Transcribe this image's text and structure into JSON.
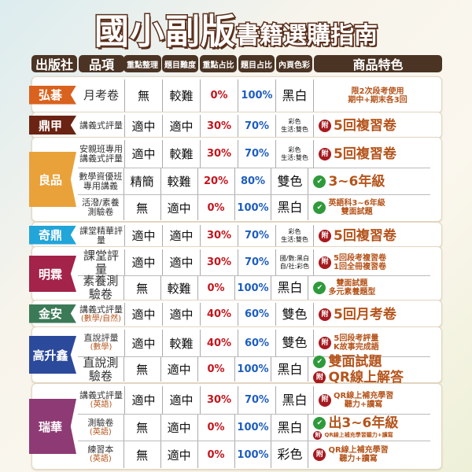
{
  "title": {
    "main": "國小副版",
    "sub": "書籍選購指南"
  },
  "colors": {
    "header": "#4b3424",
    "percent_key": "#c3151c",
    "percent_question": "#1e5dbf",
    "feature_text": "#b5541b"
  },
  "headers": [
    "出版社",
    "品項",
    "重點整理",
    "題目難度",
    "重點占比",
    "題目占比",
    "內頁色彩",
    "商品特色"
  ],
  "groups": [
    {
      "publisher": "弘碁",
      "color": "#d9621e",
      "rows": [
        {
          "item": [
            "月考卷"
          ],
          "sub": "",
          "summary": "無",
          "difficulty": "較難",
          "key_pct": "0%",
          "q_pct": "100%",
          "color_pages": [
            "黑白"
          ],
          "features": [
            {
              "icon": null,
              "lines": [
                "限2次段考使用",
                "期中+期末各3回"
              ]
            }
          ]
        }
      ]
    },
    {
      "publisher": "鼎甲",
      "color": "#6b2413",
      "rows": [
        {
          "item": [
            "講義式評量"
          ],
          "sub": "",
          "summary": "適中",
          "difficulty": "適中",
          "key_pct": "30%",
          "q_pct": "70%",
          "color_pages": [
            "彩色",
            "生活:雙色"
          ],
          "features": [
            {
              "icon": "attach-icon",
              "lines": [
                "5回複習卷"
              ]
            }
          ]
        }
      ]
    },
    {
      "publisher": "良品",
      "color": "#e9a23a",
      "rows": [
        {
          "item": [
            "安親班專用",
            "講義式評量"
          ],
          "sub": "",
          "summary": "適中",
          "difficulty": "較難",
          "key_pct": "30%",
          "q_pct": "70%",
          "color_pages": [
            "彩色",
            "生活:雙色"
          ],
          "features": [
            {
              "icon": "attach-icon",
              "lines": [
                "5回複習卷"
              ]
            }
          ]
        },
        {
          "item": [
            "數學資優班",
            "專用講義"
          ],
          "sub": "",
          "summary": "精簡",
          "difficulty": "較難",
          "key_pct": "20%",
          "q_pct": "80%",
          "color_pages": [
            "雙色"
          ],
          "features": [
            {
              "icon": "check-icon",
              "lines": [
                "3~6年級"
              ]
            }
          ]
        },
        {
          "item": [
            "活潑/素養",
            "測驗卷"
          ],
          "sub": "",
          "summary": "無",
          "difficulty": "適中",
          "key_pct": "0%",
          "q_pct": "100%",
          "color_pages": [
            "黑白"
          ],
          "features": [
            {
              "icon": "check-icon",
              "lines": [
                "英語科3~6年級",
                "雙面試題"
              ]
            }
          ]
        }
      ]
    },
    {
      "publisher": "奇鼎",
      "color": "#22a5d8",
      "rows": [
        {
          "item": [
            "課堂精華評量"
          ],
          "sub": "",
          "summary": "適中",
          "difficulty": "適中",
          "key_pct": "30%",
          "q_pct": "70%",
          "color_pages": [
            "彩色",
            "生活:雙色"
          ],
          "features": [
            {
              "icon": "attach-icon",
              "lines": [
                "5回複習卷"
              ]
            }
          ]
        }
      ]
    },
    {
      "publisher": "明霖",
      "color": "#a3234a",
      "rows": [
        {
          "item": [
            "課堂評量"
          ],
          "sub": "",
          "summary": "適中",
          "difficulty": "適中",
          "key_pct": "30%",
          "q_pct": "70%",
          "color_pages": [
            "國/數:黑白",
            "自/社:彩色"
          ],
          "features": [
            {
              "icon": "attach-icon",
              "lines": [
                "5回段考複習卷",
                "1回全冊複習卷"
              ]
            }
          ]
        },
        {
          "item": [
            "素養測驗卷"
          ],
          "sub": "",
          "summary": "無",
          "difficulty": "較難",
          "key_pct": "0%",
          "q_pct": "100%",
          "color_pages": [
            "黑白"
          ],
          "features": [
            {
              "icon": "check-icon",
              "lines": [
                "雙面試題",
                "多元素養題型"
              ]
            }
          ]
        }
      ]
    },
    {
      "publisher": "金安",
      "color": "#3b7a57",
      "rows": [
        {
          "item": [
            "講義式評量"
          ],
          "sub": "(數學/自然)",
          "summary": "適中",
          "difficulty": "適中",
          "key_pct": "40%",
          "q_pct": "60%",
          "color_pages": [
            "雙色"
          ],
          "features": [
            {
              "icon": "attach-icon",
              "lines": [
                "5回月考卷"
              ]
            }
          ]
        }
      ]
    },
    {
      "publisher": "高升鑫",
      "color": "#2c4a9c",
      "rows": [
        {
          "item": [
            "直說評量"
          ],
          "sub": "(數學)",
          "summary": "適中",
          "difficulty": "較難",
          "key_pct": "40%",
          "q_pct": "60%",
          "color_pages": [
            "雙色"
          ],
          "features": [
            {
              "icon": "attach-icon",
              "lines": [
                "5回段考評量",
                "K故事完成語"
              ]
            }
          ]
        },
        {
          "item": [
            "直說測驗卷"
          ],
          "sub": "",
          "summary": "無",
          "difficulty": "適中",
          "key_pct": "0%",
          "q_pct": "100%",
          "color_pages": [
            "黑白"
          ],
          "features": [
            {
              "icon": "check-icon",
              "lines": [
                "雙面試題"
              ]
            },
            {
              "icon": "attach-icon",
              "lines": [
                "QR線上解答"
              ]
            }
          ]
        }
      ]
    },
    {
      "publisher": "瑞華",
      "color": "#8e3a74",
      "rows": [
        {
          "item": [
            "講義式評量"
          ],
          "sub": "(英語)",
          "summary": "適中",
          "difficulty": "適中",
          "key_pct": "30%",
          "q_pct": "70%",
          "color_pages": [
            "黑白"
          ],
          "features": [
            {
              "icon": "attach-icon",
              "lines": [
                "QR線上補充學習",
                "聽力+讀寫"
              ]
            }
          ]
        },
        {
          "item": [
            "測驗卷"
          ],
          "sub": "(英語)",
          "summary": "無",
          "difficulty": "適中",
          "key_pct": "0%",
          "q_pct": "100%",
          "color_pages": [
            "黑白"
          ],
          "features": [
            {
              "icon": "check-icon",
              "lines": [
                "出3~6年級"
              ]
            },
            {
              "icon": "attach-icon",
              "lines": [
                "QR線上補充學習聽力+讀寫"
              ]
            }
          ]
        },
        {
          "item": [
            "練習本"
          ],
          "sub": "(英語)",
          "summary": "無",
          "difficulty": "適中",
          "key_pct": "0%",
          "q_pct": "100%",
          "color_pages": [
            "彩色"
          ],
          "features": [
            {
              "icon": "attach-icon",
              "lines": [
                "QR線上補充學習",
                "聽力+讀寫"
              ]
            }
          ]
        }
      ]
    }
  ],
  "icon_glyphs": {
    "attach": "附",
    "check": "✔"
  }
}
